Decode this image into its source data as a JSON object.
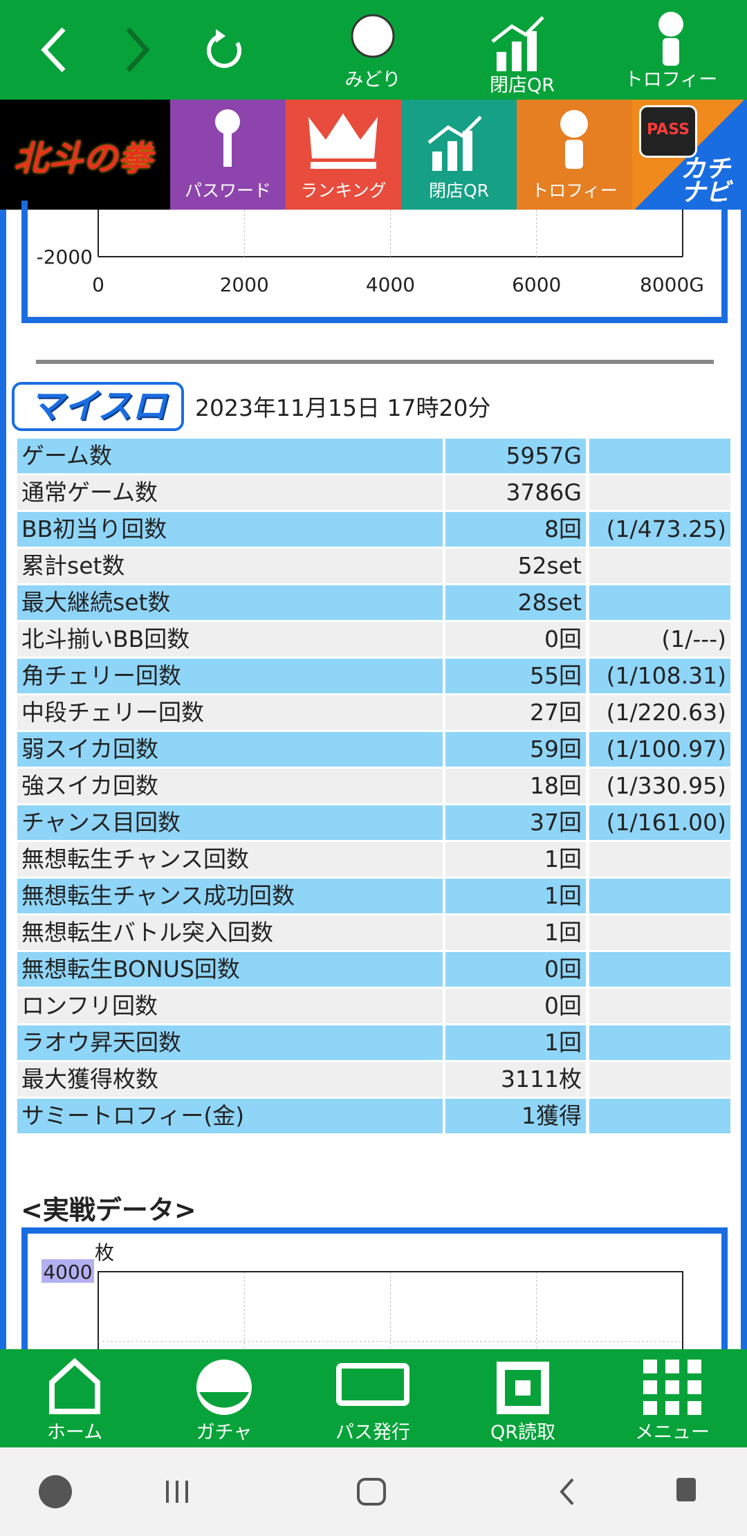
{
  "top_nav": {
    "items": [
      "みどり",
      "閉店QR",
      "トロフィー"
    ]
  },
  "menu_bar": {
    "logo": "北斗の拳",
    "items": [
      "パスワード",
      "ランキング",
      "閉店QR",
      "トロフィー"
    ],
    "pass": "PASS",
    "brand": "カチナビ"
  },
  "top_chart": {
    "yticks": [
      {
        "value": -2000,
        "label": "-2000"
      }
    ],
    "xlim": [
      0,
      8000
    ],
    "xticks": [
      0,
      2000,
      4000,
      6000,
      {
        "value": 8000,
        "label": "8000G"
      }
    ]
  },
  "record": {
    "logo": "マイスロ",
    "date": "2023年11月15日 17時20分"
  },
  "table": {
    "rows": [
      [
        "ゲーム数",
        "5957G",
        null
      ],
      [
        "通常ゲーム数",
        "3786G",
        null
      ],
      [
        "BB初当り回数",
        "8回",
        "(1/473.25)"
      ],
      [
        "累計set数",
        "52set",
        null
      ],
      [
        "最大継続set数",
        "28set",
        null
      ],
      [
        "北斗揃いBB回数",
        "0回",
        "(1/---)"
      ],
      [
        "角チェリー回数",
        "55回",
        "(1/108.31)"
      ],
      [
        "中段チェリー回数",
        "27回",
        "(1/220.63)"
      ],
      [
        "弱スイカ回数",
        "59回",
        "(1/100.97)"
      ],
      [
        "強スイカ回数",
        "18回",
        "(1/330.95)"
      ],
      [
        "チャンス目回数",
        "37回",
        "(1/161.00)"
      ],
      [
        "無想転生チャンス回数",
        "1回",
        null
      ],
      [
        "無想転生チャンス成功回数",
        "1回",
        null
      ],
      [
        "無想転生バトル突入回数",
        "1回",
        null
      ],
      [
        "無想転生BONUS回数",
        "0回",
        null
      ],
      [
        "ロンフリ回数",
        "0回",
        null
      ],
      [
        "ラオウ昇天回数",
        "1回",
        null
      ],
      [
        "最大獲得枚数",
        "3111枚",
        null
      ],
      [
        "サミートロフィー(金)",
        "1獲得",
        null
      ]
    ]
  },
  "battle": {
    "title": "<実戦データ>",
    "unit": "枚",
    "yticks": [
      4000
    ]
  },
  "bottom_nav": {
    "items": [
      "ホーム",
      "ガチャ",
      "パス発行",
      "QR読取",
      "メニュー"
    ]
  }
}
